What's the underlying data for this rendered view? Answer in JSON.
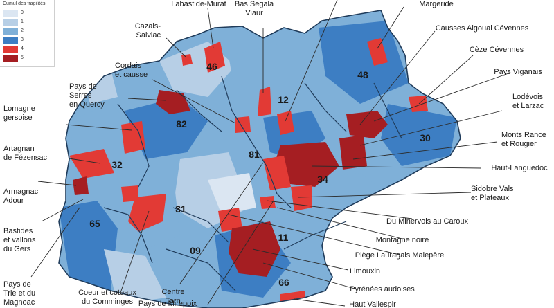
{
  "legend": {
    "title": "Cumul des fragilités",
    "items": [
      {
        "label": "0",
        "color": "#dbe6f2"
      },
      {
        "label": "1",
        "color": "#b7cfe6"
      },
      {
        "label": "2",
        "color": "#7fb0d8"
      },
      {
        "label": "3",
        "color": "#3d7ec3"
      },
      {
        "label": "4",
        "color": "#e23a35"
      },
      {
        "label": "5",
        "color": "#a51e22"
      }
    ]
  },
  "departments": [
    "46",
    "12",
    "48",
    "82",
    "30",
    "32",
    "81",
    "34",
    "31",
    "65",
    "11",
    "09",
    "66"
  ],
  "area_labels": {
    "lomagne": "Lomagne\ngersoise",
    "artagnan": "Artagnan\nde Fézensac",
    "armagnac": "Armagnac\nAdour",
    "bastides": "Bastides\net vallons\ndu Gers",
    "trie": "Pays de\nTrie et du\nMagnoac",
    "cazals": "Cazals-\nSalviac",
    "labastide": "Labastide-Murat",
    "bas_segala": "Bas Segala\nViaur",
    "cordais": "Cordais\net causse",
    "serres": "Pays de\nSerres\nen Quercy",
    "comminges": "Coeur et coteaux\ndu Comminges",
    "centre_tarn": "Centre\nTarn",
    "mirepoix": "Pays de Mirepoix",
    "margeride": "Margeride",
    "aigoual": "Causses Aigoual Cévennes",
    "ceze": "Cèze Cévennes",
    "viganais": "Pays Viganais",
    "lodevois": "Lodévois\net Larzac",
    "monts_rance": "Monts Rance\net Rougier",
    "haut_languedoc": "Haut-Languedoc",
    "sidobre": "Sidobre Vals\net Plateaux",
    "minervois": "Du Minervois au Caroux",
    "montagne_noire": "Montagne noire",
    "piege": "Piège Lauragais Malepère",
    "limouxin": "Limouxin",
    "pyrenees": "Pyrénées audoises",
    "vallespir": "Haut Vallespir"
  }
}
